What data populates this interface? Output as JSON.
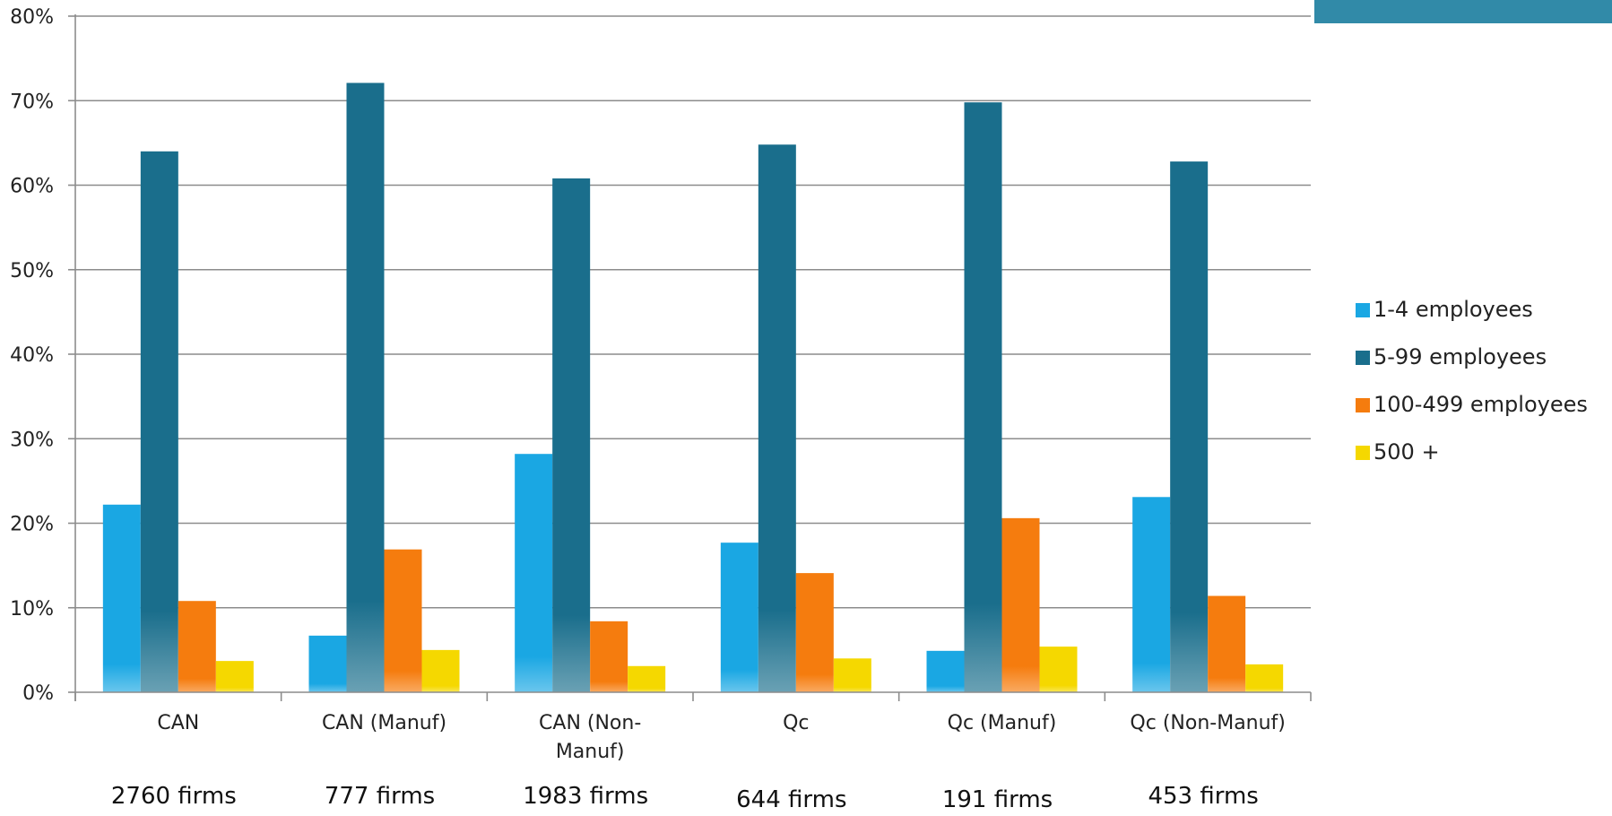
{
  "chart_data": {
    "type": "bar",
    "categories": [
      [
        "CAN"
      ],
      [
        "CAN (Manuf)"
      ],
      [
        "CAN (Non-",
        "Manuf)"
      ],
      [
        "Qc"
      ],
      [
        "Qc (Manuf)"
      ],
      [
        "Qc (Non-Manuf)"
      ]
    ],
    "firm_counts": [
      "2760 firms",
      "777 firms",
      "1983 firms",
      "644 firms",
      "191 firms",
      "453 firms"
    ],
    "series": [
      {
        "name": "1-4 employees",
        "values": [
          22.2,
          6.7,
          28.2,
          17.7,
          4.9,
          23.1
        ],
        "color": "#1aa7e3"
      },
      {
        "name": "5-99 employees",
        "values": [
          64.0,
          72.1,
          60.8,
          64.8,
          69.8,
          62.8
        ],
        "color": "#1a6e8c"
      },
      {
        "name": "100-499 employees",
        "values": [
          10.8,
          16.9,
          8.4,
          14.1,
          20.6,
          11.4
        ],
        "color": "#f57c0e"
      },
      {
        "name": "500 +",
        "values": [
          3.7,
          5.0,
          3.1,
          4.0,
          5.4,
          3.3
        ],
        "color": "#f5d800"
      }
    ],
    "yticks": [
      "0%",
      "10%",
      "20%",
      "30%",
      "40%",
      "50%",
      "60%",
      "70%",
      "80%"
    ],
    "ylim": [
      0,
      80
    ],
    "grid": true,
    "legend": "right"
  }
}
